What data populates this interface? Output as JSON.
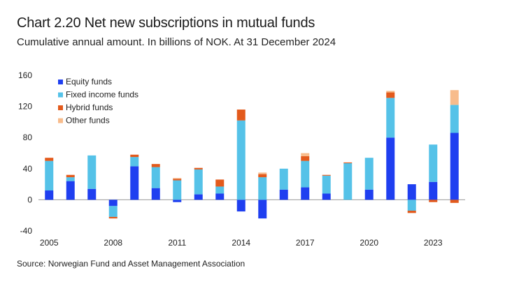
{
  "header": {
    "title": "Chart 2.20 Net new subscriptions in mutual funds",
    "subtitle": "Cumulative annual amount. In billions of NOK. At 31 December 2024"
  },
  "footer": {
    "source": "Source: Norwegian Fund and Asset Management Association"
  },
  "chart_data": {
    "type": "bar",
    "stacked": true,
    "title": "Chart 2.20 Net new subscriptions in mutual funds",
    "subtitle": "Cumulative annual amount. In billions of NOK. At 31 December 2024",
    "xlabel": "",
    "ylabel": "",
    "ylim": [
      -40,
      160
    ],
    "yticks": [
      -40,
      0,
      40,
      80,
      120,
      160
    ],
    "x": [
      2005,
      2006,
      2007,
      2008,
      2009,
      2010,
      2011,
      2012,
      2013,
      2014,
      2015,
      2016,
      2017,
      2018,
      2019,
      2020,
      2021,
      2022,
      2023,
      2024
    ],
    "xtick_labels": [
      "2005",
      "2008",
      "2011",
      "2014",
      "2017",
      "2020",
      "2023"
    ],
    "legend_position": "top-left",
    "grid": false,
    "series": [
      {
        "name": "Equity funds",
        "color": "#1f3ff0",
        "values": [
          12,
          24,
          14,
          -8,
          43,
          15,
          -3,
          7,
          8,
          -15,
          -24,
          13,
          16,
          8,
          0,
          13,
          80,
          20,
          23,
          86
        ]
      },
      {
        "name": "Fixed income funds",
        "color": "#55c2e8",
        "values": [
          38,
          5,
          43,
          -14,
          12,
          27,
          25,
          32,
          9,
          102,
          29,
          27,
          34,
          23,
          47,
          41,
          51,
          -14,
          48,
          36
        ]
      },
      {
        "name": "Hybrid funds",
        "color": "#e35a1c",
        "values": [
          4,
          3,
          0,
          -2,
          3,
          4,
          2,
          2,
          9,
          14,
          4,
          0,
          6,
          1,
          1,
          0,
          7,
          -3,
          -3,
          -4
        ]
      },
      {
        "name": "Other funds",
        "color": "#f8bc8c",
        "values": [
          0,
          0,
          0,
          0,
          0,
          0,
          1,
          0,
          0,
          0,
          2,
          0,
          4,
          0,
          0,
          0,
          2,
          0,
          0,
          19
        ]
      }
    ]
  }
}
